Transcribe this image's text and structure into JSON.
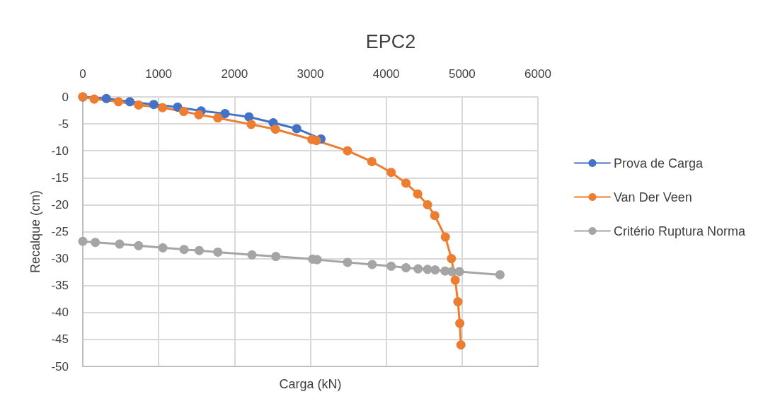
{
  "chart_data": {
    "type": "line",
    "title": "EPC2",
    "xlabel": "Carga (kN)",
    "ylabel": "Recalque (cm)",
    "xlim": [
      0,
      6000
    ],
    "xticks": [
      0,
      1000,
      2000,
      3000,
      4000,
      5000,
      6000
    ],
    "ylim": [
      -50,
      0
    ],
    "yticks": [
      0,
      -5,
      -10,
      -15,
      -20,
      -25,
      -30,
      -35,
      -40,
      -45,
      -50
    ],
    "grid": true,
    "legend": "right",
    "marker": "circle",
    "line_style": "solid",
    "series": [
      {
        "name": "Prova de Carga",
        "color": "#4472c4",
        "x": [
          0,
          310,
          620,
          935,
          1250,
          1560,
          1875,
          2190,
          2510,
          2820,
          3140
        ],
        "values": [
          0,
          -0.3,
          -0.9,
          -1.4,
          -1.9,
          -2.6,
          -3.1,
          -3.7,
          -4.8,
          -5.9,
          -7.8
        ]
      },
      {
        "name": "Van Der Veen",
        "color": "#ed7d31",
        "x": [
          0,
          150,
          470,
          735,
          1050,
          1330,
          1530,
          1780,
          2220,
          2540,
          3020,
          3080,
          3490,
          3810,
          4065,
          4260,
          4415,
          4545,
          4640,
          4780,
          4860,
          4910,
          4945,
          4970,
          4985
        ],
        "values": [
          0,
          -0.4,
          -0.9,
          -1.5,
          -2.0,
          -2.7,
          -3.3,
          -3.9,
          -5.1,
          -6.0,
          -7.9,
          -8.1,
          -10,
          -12,
          -14,
          -16,
          -18,
          -20,
          -22,
          -26,
          -30,
          -34,
          -38,
          -42,
          -46
        ]
      },
      {
        "name": "Critério Ruptura Norma",
        "color": "#a5a5a5",
        "x": [
          0,
          165,
          485,
          735,
          1055,
          1335,
          1535,
          1780,
          2230,
          2545,
          3030,
          3090,
          3490,
          3815,
          4065,
          4260,
          4420,
          4545,
          4645,
          4775,
          4865,
          4930,
          4965,
          5500
        ],
        "values": [
          -26.8,
          -27.0,
          -27.3,
          -27.6,
          -28.0,
          -28.3,
          -28.5,
          -28.8,
          -29.3,
          -29.6,
          -30.1,
          -30.2,
          -30.7,
          -31.1,
          -31.4,
          -31.7,
          -31.9,
          -32.0,
          -32.1,
          -32.3,
          -32.4,
          null,
          -32.4,
          -33.0
        ]
      }
    ]
  }
}
